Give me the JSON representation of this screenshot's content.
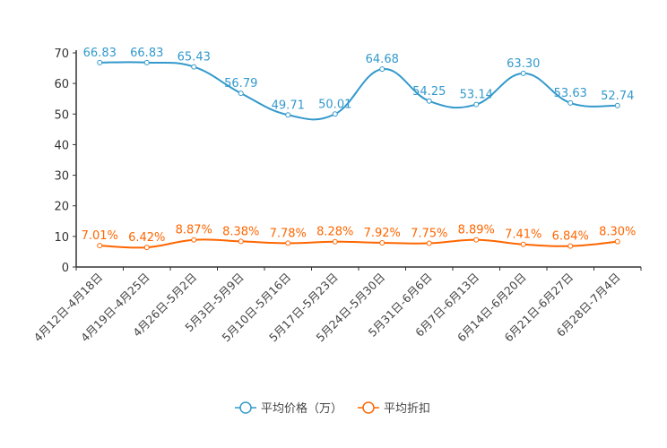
{
  "chart_data": {
    "type": "line",
    "title": "",
    "xlabel": "",
    "ylabel": "",
    "ylim": [
      0,
      70
    ],
    "yticks": [
      0,
      10,
      20,
      30,
      40,
      50,
      60,
      70
    ],
    "grid": false,
    "legend_position": "bottom-center",
    "categories": [
      "4月12日-4月18日",
      "4月19日-4月25日",
      "4月26日-5月2日",
      "5月3日-5月9日",
      "5月10日-5月16日",
      "5月17日-5月23日",
      "5月24日-5月30日",
      "5月31日-6月6日",
      "6月7日-6月13日",
      "6月14日-6月20日",
      "6月21日-6月27日",
      "6月28日-7月4日"
    ],
    "series": [
      {
        "name": "平均价格（万）",
        "color": "#3399cc",
        "values": [
          66.83,
          66.83,
          65.43,
          56.79,
          49.71,
          50.01,
          64.68,
          54.25,
          53.14,
          63.3,
          53.63,
          52.74
        ],
        "labels": [
          "66.83",
          "66.83",
          "65.43",
          "56.79",
          "49.71",
          "50.01",
          "64.68",
          "54.25",
          "53.14",
          "63.30",
          "53.63",
          "52.74"
        ]
      },
      {
        "name": "平均折扣",
        "color": "#ff6600",
        "values": [
          7.01,
          6.42,
          8.87,
          8.38,
          7.78,
          8.28,
          7.92,
          7.75,
          8.89,
          7.41,
          6.84,
          8.3
        ],
        "labels": [
          "7.01%",
          "6.42%",
          "8.87%",
          "8.38%",
          "7.78%",
          "8.28%",
          "7.92%",
          "7.75%",
          "8.89%",
          "7.41%",
          "6.84%",
          "8.30%"
        ]
      }
    ]
  }
}
